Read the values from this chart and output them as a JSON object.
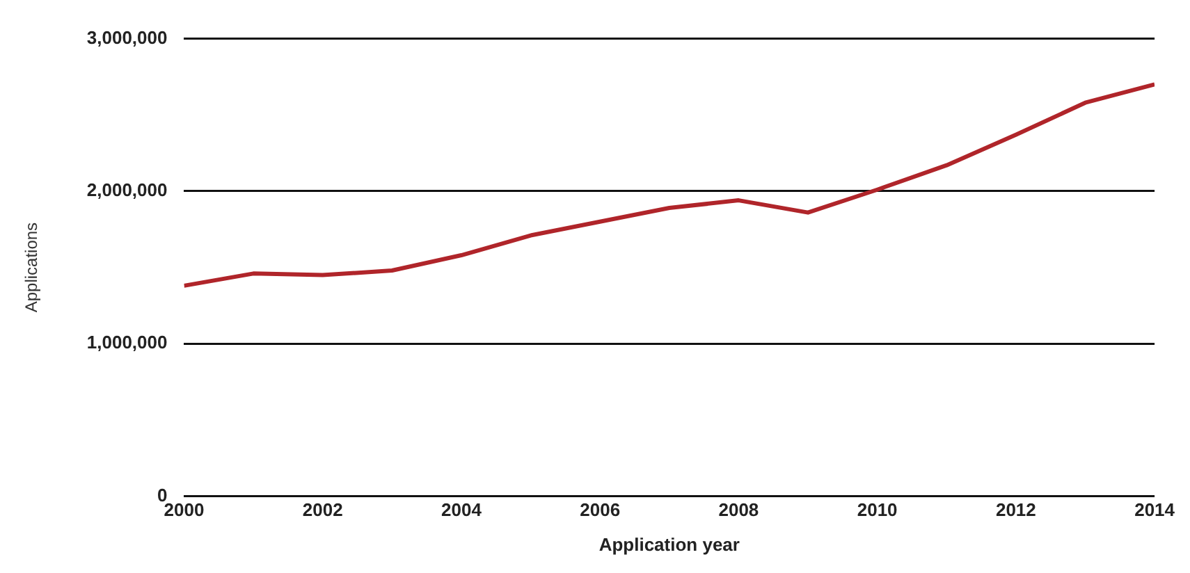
{
  "chart_data": {
    "type": "line",
    "xlabel": "Application year",
    "ylabel": "Applications",
    "x": [
      2000,
      2001,
      2002,
      2003,
      2004,
      2005,
      2006,
      2007,
      2008,
      2009,
      2010,
      2011,
      2012,
      2013,
      2014
    ],
    "series": [
      {
        "color": "#b0252a",
        "values": [
          1380000,
          1460000,
          1450000,
          1480000,
          1580000,
          1710000,
          1800000,
          1890000,
          1940000,
          1860000,
          2010000,
          2170000,
          2370000,
          2580000,
          2700000
        ]
      }
    ],
    "xlim": [
      2000,
      2014
    ],
    "xticks": [
      2000,
      2002,
      2004,
      2006,
      2008,
      2010,
      2012,
      2014
    ],
    "ylim": [
      0,
      3000000
    ],
    "yticks": [
      0,
      {
        "value": 1000000,
        "label": "1,000,000"
      },
      {
        "value": 2000000,
        "label": "2,000,000"
      },
      {
        "value": 3000000,
        "label": "3,000,000"
      }
    ],
    "grid": "y",
    "legend": false,
    "marker": "none",
    "line_style": "solid"
  }
}
